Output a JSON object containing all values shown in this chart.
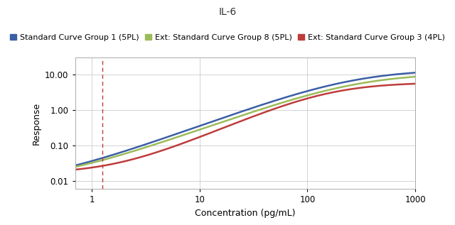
{
  "title": "IL-6",
  "xlabel": "Concentration (pg/mL)",
  "ylabel": "Response",
  "xlim": [
    0.7,
    1000
  ],
  "ylim": [
    0.006,
    30
  ],
  "vline_x": 1.25,
  "legend": [
    {
      "label": "Standard Curve Group 1 (5PL)",
      "color": "#3B5EA6",
      "lw": 1.8
    },
    {
      "label": "Ext: Standard Curve Group 8 (5PL)",
      "color": "#9BBB59",
      "lw": 1.8
    },
    {
      "label": "Ext: Standard Curve Group 3 (4PL)",
      "color": "#BE3C3C",
      "lw": 1.8
    }
  ],
  "curve1": {
    "A": 0.0085,
    "D": 14.0,
    "C": 280.0,
    "B": 1.1,
    "E": 1.0
  },
  "curve2": {
    "A": 0.0095,
    "D": 11.0,
    "C": 300.0,
    "B": 1.08,
    "E": 1.0
  },
  "curve3": {
    "A": 0.016,
    "D": 6.0,
    "C": 160.0,
    "B": 1.3,
    "E": 1.0
  },
  "background_color": "#FFFFFF",
  "grid_color": "#CCCCCC",
  "title_fontsize": 10,
  "axis_label_fontsize": 9,
  "tick_fontsize": 8.5,
  "legend_fontsize": 8.0
}
